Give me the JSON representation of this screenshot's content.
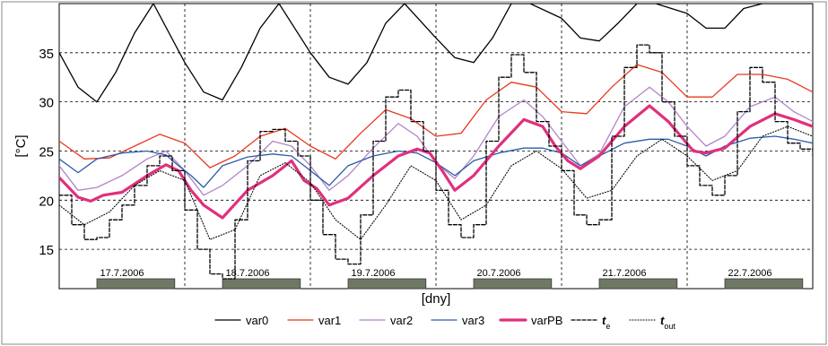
{
  "chart_data": {
    "type": "line",
    "ylabel": "[°C]",
    "xlabel": "[dny]",
    "xlim": [
      0,
      6
    ],
    "ylim": [
      11,
      40
    ],
    "y_ticks": [
      15,
      20,
      25,
      30,
      35
    ],
    "grid": true,
    "legend_position": "bottom",
    "day_labels": [
      "17.7.2006",
      "18.7.2006",
      "19.7.2006",
      "20.7.2006",
      "21.7.2006",
      "22.7.2006"
    ],
    "occupancy_bars": [
      [
        0.3,
        0.92
      ],
      [
        1.3,
        1.92
      ],
      [
        2.3,
        2.92
      ],
      [
        3.3,
        3.92
      ],
      [
        4.3,
        4.92
      ],
      [
        5.3,
        5.92
      ]
    ],
    "series": [
      {
        "name": "var0",
        "color": "#000000",
        "style": "solid",
        "x": [
          0,
          0.15,
          0.3,
          0.45,
          0.6,
          0.75,
          1.0,
          1.15,
          1.3,
          1.45,
          1.6,
          1.75,
          2.0,
          2.15,
          2.3,
          2.45,
          2.6,
          2.75,
          3.0,
          3.15,
          3.3,
          3.45,
          3.6,
          3.75,
          4.0,
          4.15,
          4.3,
          4.45,
          4.6,
          4.75,
          5.0,
          5.15,
          5.3,
          5.45,
          5.6,
          5.75,
          6.0
        ],
        "y": [
          35,
          31.5,
          30,
          33,
          37,
          40,
          34,
          31,
          30.2,
          33.5,
          37.5,
          40,
          35,
          32.5,
          31.8,
          34,
          38,
          40,
          36.5,
          34.5,
          34,
          36.5,
          40,
          40,
          38.5,
          36.5,
          36.2,
          38,
          40,
          40,
          39,
          37.5,
          37.5,
          39.5,
          40,
          40,
          40
        ]
      },
      {
        "name": "var1",
        "color": "#e8391e",
        "style": "solid",
        "x": [
          0,
          0.2,
          0.4,
          0.6,
          0.8,
          1.0,
          1.2,
          1.4,
          1.6,
          1.8,
          2.0,
          2.2,
          2.4,
          2.6,
          2.8,
          3.0,
          3.2,
          3.4,
          3.6,
          3.8,
          4.0,
          4.2,
          4.4,
          4.6,
          4.8,
          5.0,
          5.2,
          5.4,
          5.6,
          5.8,
          6.0
        ],
        "y": [
          26,
          24.2,
          24.3,
          25.5,
          26.7,
          25.8,
          23.3,
          24.5,
          26.5,
          27.3,
          25.5,
          24.2,
          26.8,
          29.2,
          28.3,
          26.5,
          26.8,
          30.2,
          32,
          31.5,
          29,
          28.8,
          31.5,
          33.8,
          33,
          30.5,
          30.5,
          32.8,
          32.8,
          32.3,
          31
        ]
      },
      {
        "name": "var2",
        "color": "#b185c8",
        "style": "solid",
        "x": [
          0,
          0.15,
          0.3,
          0.5,
          0.7,
          0.85,
          1.0,
          1.15,
          1.3,
          1.5,
          1.7,
          1.85,
          2.0,
          2.15,
          2.3,
          2.5,
          2.7,
          2.85,
          3.0,
          3.15,
          3.3,
          3.5,
          3.7,
          3.85,
          4.0,
          4.15,
          4.3,
          4.5,
          4.7,
          4.85,
          5.0,
          5.15,
          5.3,
          5.5,
          5.7,
          5.85,
          6.0
        ],
        "y": [
          23.5,
          21,
          21.3,
          22.5,
          24.2,
          25,
          23,
          20.5,
          21.5,
          23.5,
          26,
          25.5,
          23.5,
          21,
          22.5,
          25.3,
          27.8,
          26.5,
          23.8,
          22.2,
          24.5,
          28.5,
          30.2,
          28.5,
          26,
          23.5,
          24.7,
          29.5,
          31.5,
          30,
          27.5,
          25.5,
          26.5,
          29.5,
          30.5,
          29,
          28
        ]
      },
      {
        "name": "var3",
        "color": "#2a5ca8",
        "style": "solid",
        "x": [
          0,
          0.15,
          0.3,
          0.5,
          0.7,
          0.85,
          0.95,
          1.05,
          1.15,
          1.3,
          1.5,
          1.7,
          1.85,
          1.95,
          2.05,
          2.15,
          2.3,
          2.5,
          2.7,
          2.85,
          3.0,
          3.15,
          3.3,
          3.5,
          3.7,
          3.85,
          4.0,
          4.15,
          4.3,
          4.5,
          4.7,
          4.85,
          5.0,
          5.15,
          5.3,
          5.5,
          5.7,
          5.85,
          6.0
        ],
        "y": [
          24.2,
          22.8,
          24.2,
          24.8,
          25,
          24.6,
          23.5,
          22.5,
          21.3,
          23.5,
          24.4,
          24.7,
          24.5,
          23.5,
          22.5,
          21.5,
          23.5,
          24.5,
          25,
          24.8,
          23.8,
          22.5,
          24,
          24.8,
          25.3,
          25.3,
          24.8,
          23.5,
          24.5,
          25.8,
          26.2,
          26.2,
          25.5,
          24.5,
          25.5,
          26.3,
          26.5,
          26.2,
          25.8
        ]
      },
      {
        "name": "varPB",
        "color": "#e0307c",
        "style": "bold",
        "x": [
          0,
          0.15,
          0.25,
          0.35,
          0.5,
          0.7,
          0.85,
          0.95,
          1.05,
          1.15,
          1.3,
          1.5,
          1.7,
          1.85,
          1.95,
          2.05,
          2.15,
          2.3,
          2.5,
          2.7,
          2.85,
          2.95,
          3.05,
          3.15,
          3.3,
          3.5,
          3.7,
          3.85,
          3.95,
          4.05,
          4.15,
          4.3,
          4.5,
          4.7,
          4.85,
          4.95,
          5.05,
          5.15,
          5.3,
          5.5,
          5.7,
          5.85,
          6.0
        ],
        "y": [
          22.3,
          20.3,
          19.9,
          20.5,
          20.8,
          22.5,
          23.6,
          23,
          21,
          19.5,
          18.2,
          21,
          22.5,
          24,
          22,
          21.2,
          19.5,
          20.2,
          22.5,
          24.5,
          25.2,
          24.8,
          23,
          21,
          22.5,
          25.5,
          28.2,
          27.5,
          25.5,
          24,
          23.2,
          24.5,
          27.5,
          29.6,
          28,
          26.5,
          25,
          24.8,
          25.3,
          27.5,
          28.8,
          28.2,
          27.5
        ]
      },
      {
        "name": "t_e",
        "color": "#000000",
        "style": "dashed",
        "x": [
          0,
          0.1,
          0.2,
          0.3,
          0.4,
          0.5,
          0.6,
          0.7,
          0.8,
          0.9,
          1.0,
          1.1,
          1.2,
          1.3,
          1.4,
          1.5,
          1.6,
          1.7,
          1.8,
          1.9,
          2.0,
          2.1,
          2.2,
          2.3,
          2.4,
          2.5,
          2.6,
          2.7,
          2.8,
          2.9,
          3.0,
          3.1,
          3.2,
          3.3,
          3.4,
          3.5,
          3.6,
          3.7,
          3.8,
          3.9,
          4.0,
          4.1,
          4.2,
          4.3,
          4.4,
          4.5,
          4.6,
          4.7,
          4.8,
          4.9,
          5.0,
          5.1,
          5.2,
          5.3,
          5.4,
          5.5,
          5.6,
          5.7,
          5.8,
          5.9,
          6.0
        ],
        "y": [
          20.5,
          17.5,
          16,
          16.2,
          18,
          19.5,
          21.5,
          23.5,
          24.5,
          23,
          19,
          15,
          12.5,
          12,
          18,
          24,
          27,
          27.2,
          26,
          24.5,
          20,
          16.5,
          14,
          13.5,
          18.5,
          26,
          30.5,
          31.2,
          28,
          25,
          21,
          17.5,
          16.2,
          17.5,
          26,
          32.5,
          34.8,
          33,
          28,
          25.5,
          23,
          18.5,
          17.5,
          18,
          26.5,
          33.5,
          35.8,
          35,
          30,
          26.5,
          23.5,
          21.5,
          20.5,
          22.5,
          29,
          33.5,
          32,
          28,
          25.8,
          25.2,
          24.5
        ]
      },
      {
        "name": "t_out",
        "color": "#000000",
        "style": "dotted",
        "x": [
          0,
          0.2,
          0.4,
          0.6,
          0.8,
          1.0,
          1.2,
          1.4,
          1.6,
          1.8,
          2.0,
          2.2,
          2.4,
          2.6,
          2.8,
          3.0,
          3.2,
          3.4,
          3.6,
          3.8,
          4.0,
          4.2,
          4.4,
          4.6,
          4.8,
          5.0,
          5.2,
          5.4,
          5.6,
          5.8,
          6.0
        ],
        "y": [
          19.5,
          17.5,
          18.8,
          21.5,
          23,
          22,
          16,
          17,
          22.5,
          23.8,
          21.8,
          18,
          16,
          19.5,
          23.5,
          22,
          18,
          19.5,
          23.5,
          25,
          23.2,
          20.2,
          21,
          24.5,
          26.2,
          24.5,
          22,
          23,
          26.5,
          27.5,
          26.5
        ]
      }
    ]
  },
  "legend": [
    {
      "key": "var0",
      "label": "var0",
      "color": "#000000",
      "style": "solid"
    },
    {
      "key": "var1",
      "label": "var1",
      "color": "#e8391e",
      "style": "solid"
    },
    {
      "key": "var2",
      "label": "var2",
      "color": "#b185c8",
      "style": "solid"
    },
    {
      "key": "var3",
      "label": "var3",
      "color": "#2a5ca8",
      "style": "solid"
    },
    {
      "key": "varPB",
      "label": "varPB",
      "color": "#e0307c",
      "style": "bold"
    },
    {
      "key": "t_e",
      "label": "t",
      "sub": "e",
      "color": "#000000",
      "style": "dashed"
    },
    {
      "key": "t_out",
      "label": "t",
      "sub": "out",
      "color": "#000000",
      "style": "dotted"
    }
  ]
}
